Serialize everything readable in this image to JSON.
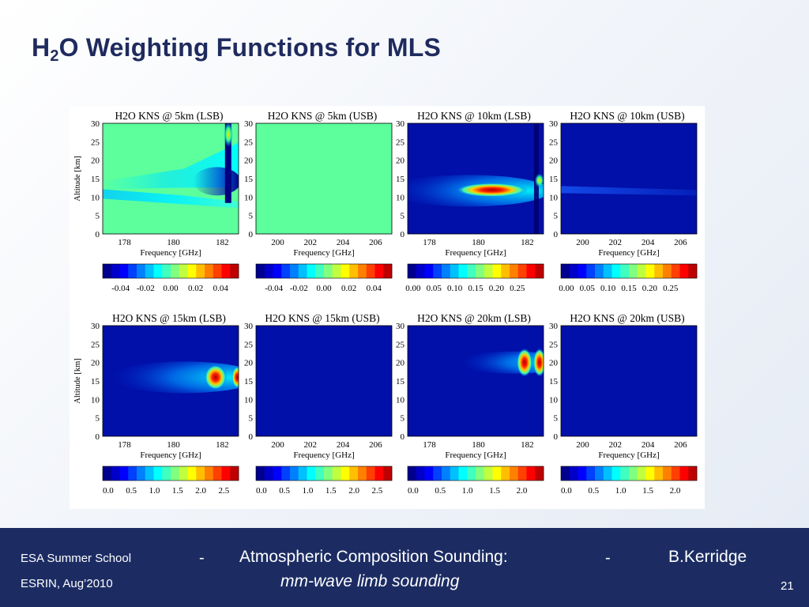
{
  "slide": {
    "title_prefix": "H",
    "title_sub": "2",
    "title_rest": "O Weighting Functions for MLS",
    "footer": {
      "school": "ESA Summer School",
      "venue": "ESRIN, Aug’2010",
      "dash": "-",
      "topic": "Atmospheric Composition Sounding:",
      "subtopic": "mm-wave limb sounding",
      "author": "B.Kerridge",
      "page": "21"
    }
  },
  "chart_data": [
    {
      "type": "heatmap",
      "title": "H2O KNS @ 5km (LSB)",
      "xlabel": "Frequency [GHz]",
      "ylabel": "Altitude [km]",
      "xticks": [
        "178",
        "180",
        "182"
      ],
      "yticks": [
        "30",
        "25",
        "20",
        "15",
        "10",
        "5",
        "0"
      ],
      "ylim": [
        0,
        30
      ],
      "colorbar_ticks": [
        "-0.04",
        "-0.02",
        "0.00",
        "0.02",
        "0.04"
      ],
      "colorbar_range": [
        -0.05,
        0.05
      ],
      "peak_altitude_km": 13,
      "background": "zero"
    },
    {
      "type": "heatmap",
      "title": "H2O KNS @ 5km (USB)",
      "xlabel": "Frequency [GHz]",
      "ylabel": "",
      "xticks": [
        "200",
        "202",
        "204",
        "206"
      ],
      "yticks": [
        "30",
        "25",
        "20",
        "15",
        "10",
        "5",
        "0"
      ],
      "ylim": [
        0,
        30
      ],
      "colorbar_ticks": [
        "-0.04",
        "-0.02",
        "0.00",
        "0.02",
        "0.04"
      ],
      "colorbar_range": [
        -0.05,
        0.05
      ],
      "background": "zero"
    },
    {
      "type": "heatmap",
      "title": "H2O KNS @ 10km (LSB)",
      "xlabel": "Frequency [GHz]",
      "ylabel": "",
      "xticks": [
        "178",
        "180",
        "182"
      ],
      "yticks": [
        "30",
        "25",
        "20",
        "15",
        "10",
        "5",
        "0"
      ],
      "ylim": [
        0,
        30
      ],
      "colorbar_ticks": [
        "0.00",
        "0.05",
        "0.10",
        "0.15",
        "0.20",
        "0.25"
      ],
      "colorbar_range": [
        0,
        0.3
      ],
      "peak_altitude_km": 13,
      "background": "low"
    },
    {
      "type": "heatmap",
      "title": "H2O KNS @ 10km (USB)",
      "xlabel": "Frequency [GHz]",
      "ylabel": "",
      "xticks": [
        "200",
        "202",
        "204",
        "206"
      ],
      "yticks": [
        "30",
        "25",
        "20",
        "15",
        "10",
        "5",
        "0"
      ],
      "ylim": [
        0,
        30
      ],
      "colorbar_ticks": [
        "0.00",
        "0.05",
        "0.10",
        "0.15",
        "0.20",
        "0.25"
      ],
      "colorbar_range": [
        0,
        0.3
      ],
      "background": "low"
    },
    {
      "type": "heatmap",
      "title": "H2O KNS @ 15km (LSB)",
      "xlabel": "Frequency [GHz]",
      "ylabel": "Altitude [km]",
      "xticks": [
        "178",
        "180",
        "182"
      ],
      "yticks": [
        "30",
        "25",
        "20",
        "15",
        "10",
        "5",
        "0"
      ],
      "ylim": [
        0,
        30
      ],
      "colorbar_ticks": [
        "0.0",
        "0.5",
        "1.0",
        "1.5",
        "2.0",
        "2.5"
      ],
      "colorbar_range": [
        0,
        2.7
      ],
      "peak_altitude_km": 16,
      "background": "low"
    },
    {
      "type": "heatmap",
      "title": "H2O KNS @ 15km (USB)",
      "xlabel": "Frequency [GHz]",
      "ylabel": "",
      "xticks": [
        "200",
        "202",
        "204",
        "206"
      ],
      "yticks": [
        "30",
        "25",
        "20",
        "15",
        "10",
        "5",
        "0"
      ],
      "ylim": [
        0,
        30
      ],
      "colorbar_ticks": [
        "0.0",
        "0.5",
        "1.0",
        "1.5",
        "2.0",
        "2.5"
      ],
      "colorbar_range": [
        0,
        2.7
      ],
      "background": "low"
    },
    {
      "type": "heatmap",
      "title": "H2O KNS @ 20km (LSB)",
      "xlabel": "Frequency [GHz]",
      "ylabel": "",
      "xticks": [
        "178",
        "180",
        "182"
      ],
      "yticks": [
        "30",
        "25",
        "20",
        "15",
        "10",
        "5",
        "0"
      ],
      "ylim": [
        0,
        30
      ],
      "colorbar_ticks": [
        "0.0",
        "0.5",
        "1.0",
        "1.5",
        "2.0"
      ],
      "colorbar_range": [
        0,
        2.3
      ],
      "peak_altitude_km": 20,
      "background": "low"
    },
    {
      "type": "heatmap",
      "title": "H2O KNS @ 20km (USB)",
      "xlabel": "Frequency [GHz]",
      "ylabel": "",
      "xticks": [
        "200",
        "202",
        "204",
        "206"
      ],
      "yticks": [
        "30",
        "25",
        "20",
        "15",
        "10",
        "5",
        "0"
      ],
      "ylim": [
        0,
        30
      ],
      "colorbar_ticks": [
        "0.0",
        "0.5",
        "1.0",
        "1.5",
        "2.0"
      ],
      "colorbar_range": [
        0,
        2.3
      ],
      "background": "low"
    }
  ]
}
